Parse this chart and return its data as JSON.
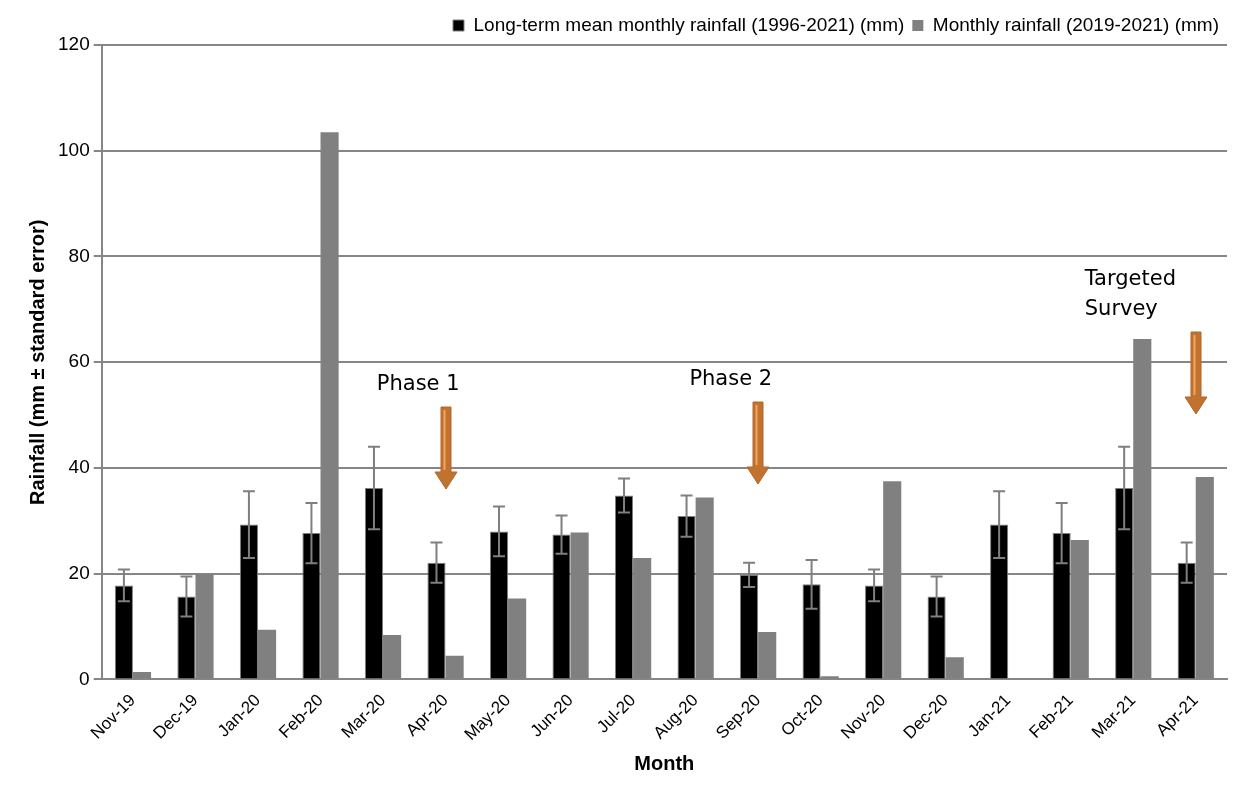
{
  "chart_data": {
    "type": "bar",
    "xlabel": "Month",
    "ylabel": "Rainfall (mm ± standard error)",
    "categories": [
      "Nov-19",
      "Dec-19",
      "Jan-20",
      "Feb-20",
      "Mar-20",
      "Apr-20",
      "May-20",
      "Jun-20",
      "Jul-20",
      "Aug-20",
      "Sep-20",
      "Oct-20",
      "Nov-20",
      "Dec-20",
      "Jan-21",
      "Feb-21",
      "Mar-21",
      "Apr-21"
    ],
    "series": [
      {
        "name": "Long-term mean monthly rainfall (1996-2021) (mm)",
        "color": "#000000",
        "values": [
          17.8,
          15.7,
          29.3,
          27.7,
          36.2,
          22.1,
          28,
          27.4,
          34.8,
          30.9,
          19.8,
          18,
          17.8,
          15.7,
          29.3,
          27.7,
          36.2,
          22.1
        ],
        "errors": [
          3,
          3.8,
          6.3,
          5.7,
          7.8,
          3.8,
          4.7,
          3.6,
          3.2,
          3.9,
          2.3,
          4.6,
          3,
          3.8,
          6.3,
          5.7,
          7.8,
          3.8
        ]
      },
      {
        "name": "Monthly rainfall (2019-2021) (mm)",
        "color": "#808080",
        "values": [
          1.4,
          20,
          9.4,
          103.5,
          8.4,
          4.5,
          15.3,
          27.8,
          23,
          34.4,
          9,
          0.6,
          37.5,
          4.2,
          0,
          26.4,
          64.4,
          38.3
        ]
      }
    ],
    "ylim": [
      0,
      120
    ],
    "yticks": [
      0,
      20,
      40,
      60,
      80,
      100,
      120
    ],
    "grid": "y",
    "legend": "top right",
    "annotations": [
      "Phase 1",
      "Phase 2",
      "Targeted Survey"
    ]
  }
}
